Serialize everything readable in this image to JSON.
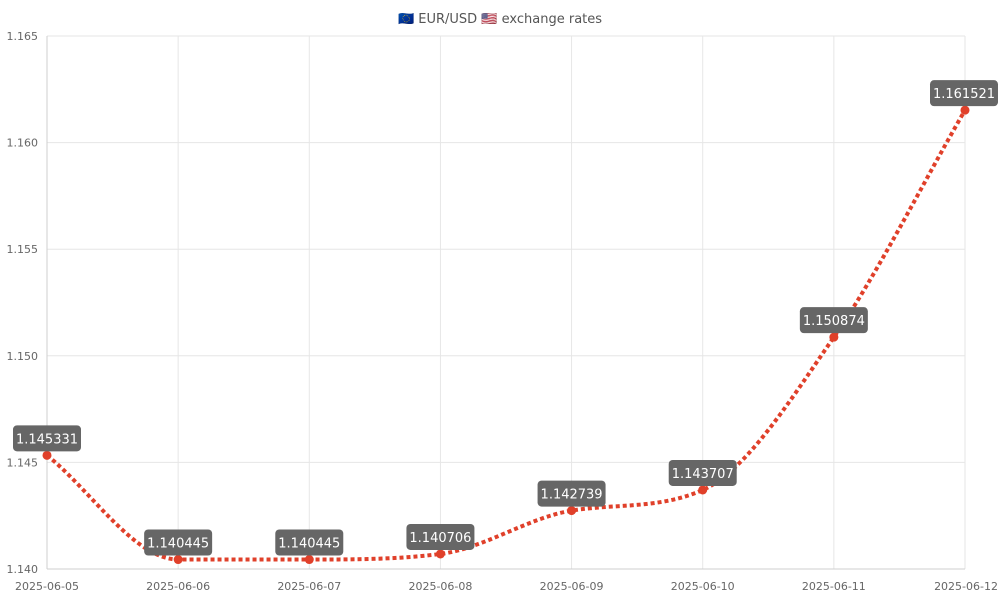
{
  "chart_data": {
    "type": "line",
    "title": "🇪🇺 EUR/USD 🇺🇸 exchange rates",
    "xlabel": "",
    "ylabel": "",
    "categories": [
      "2025-06-05",
      "2025-06-06",
      "2025-06-07",
      "2025-06-08",
      "2025-06-09",
      "2025-06-10",
      "2025-06-11",
      "2025-06-12"
    ],
    "series": [
      {
        "values": [
          1.145331,
          1.140445,
          1.140445,
          1.140706,
          1.142739,
          1.143707,
          1.150874,
          1.161521
        ],
        "labels": [
          "1.145331",
          "1.140445",
          "1.140445",
          "1.140706",
          "1.142739",
          "1.143707",
          "1.150874",
          "1.161521"
        ],
        "color": "#e0402a"
      }
    ],
    "ylim": [
      1.14,
      1.165
    ],
    "yticks": [
      "1.140",
      "1.145",
      "1.150",
      "1.155",
      "1.160",
      "1.165"
    ],
    "ytick_values": [
      1.14,
      1.145,
      1.15,
      1.155,
      1.16,
      1.165
    ],
    "grid": true,
    "legend": "none",
    "line_style": "dotted",
    "data_label_color": "#666666"
  }
}
